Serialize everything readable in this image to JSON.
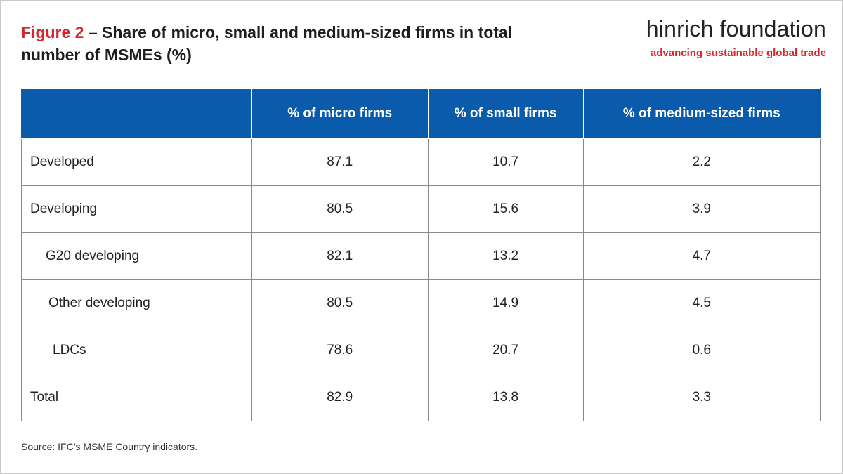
{
  "header": {
    "figure_label": "Figure 2",
    "title": "– Share of micro, small and medium-sized firms in total number of MSMEs (%)"
  },
  "brand": {
    "name_bold": "hinrich",
    "name_rest": "foundation",
    "tagline": "advancing sustainable global trade"
  },
  "chart_data": {
    "type": "table",
    "columns": [
      "",
      "% of micro firms",
      "% of small firms",
      "% of medium-sized firms"
    ],
    "rows": [
      {
        "label": "Developed",
        "values": [
          "87.1",
          "10.7",
          "2.2"
        ]
      },
      {
        "label": "Developing",
        "values": [
          "80.5",
          "15.6",
          "3.9"
        ]
      },
      {
        "label": "G20 developing",
        "values": [
          "82.1",
          "13.2",
          "4.7"
        ]
      },
      {
        "label": "Other developing",
        "values": [
          "80.5",
          "14.9",
          "4.5"
        ]
      },
      {
        "label": "LDCs",
        "values": [
          "78.6",
          "20.7",
          "0.6"
        ]
      },
      {
        "label": "Total",
        "values": [
          "82.9",
          "13.8",
          "3.3"
        ]
      }
    ]
  },
  "source": "Source: IFC’s MSME Country indicators.",
  "colors": {
    "header_bg": "#0a5bac",
    "accent_red": "#d6252c"
  }
}
